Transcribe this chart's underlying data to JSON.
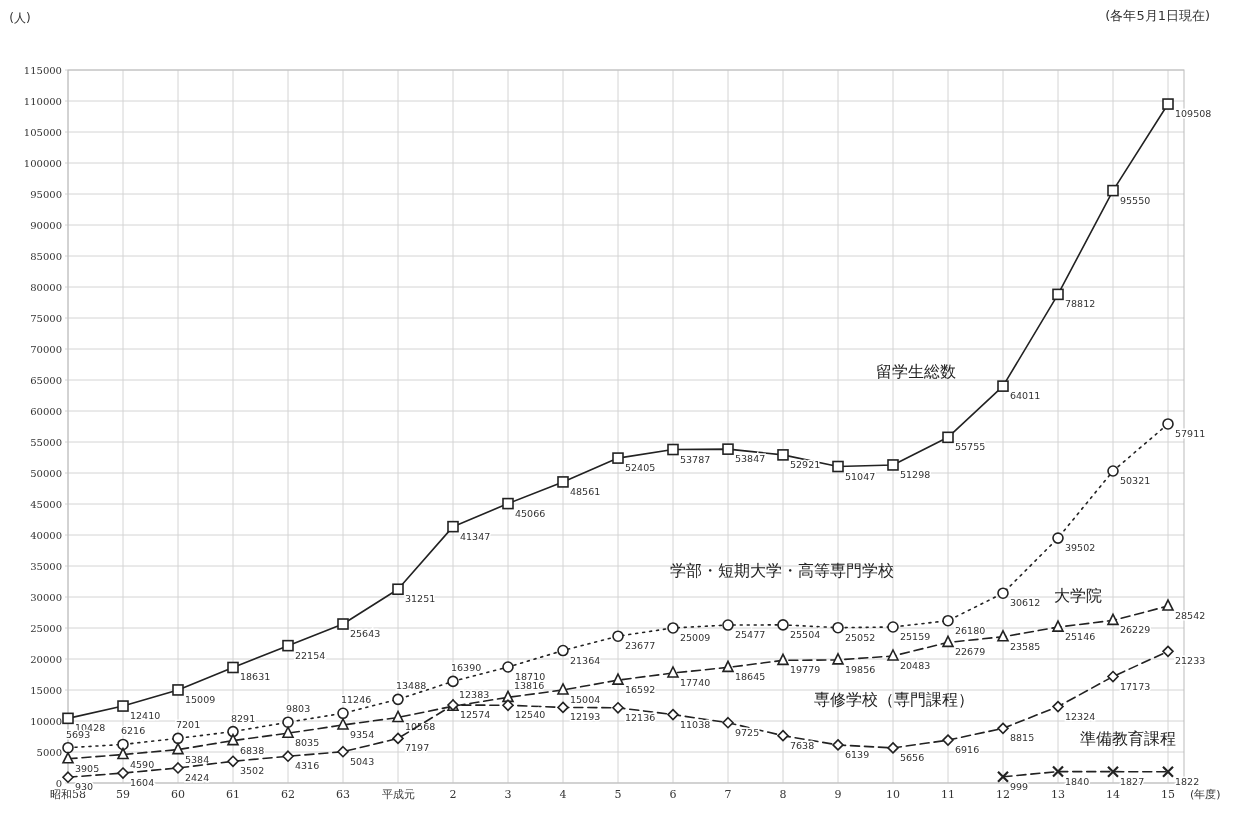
{
  "chart_data": {
    "type": "line",
    "ylabel": "(人)",
    "xlabel": "(年度)",
    "annotations": [
      "(各年5月1日現在)"
    ],
    "categories": [
      "昭和58",
      "59",
      "60",
      "61",
      "62",
      "63",
      "平成元",
      "2",
      "3",
      "4",
      "5",
      "6",
      "7",
      "8",
      "9",
      "10",
      "11",
      "12",
      "13",
      "14",
      "15"
    ],
    "ylim": [
      0,
      115000
    ],
    "yticks": [
      0,
      5000,
      10000,
      15000,
      20000,
      25000,
      30000,
      35000,
      40000,
      45000,
      50000,
      55000,
      60000,
      65000,
      70000,
      75000,
      80000,
      85000,
      90000,
      95000,
      100000,
      105000,
      110000,
      115000
    ],
    "grid": true,
    "data_labels": true,
    "series": [
      {
        "name": "留学生総数",
        "color": "#222222",
        "marker": "square",
        "line_style": "solid",
        "values": [
          10428,
          12410,
          15009,
          18631,
          22154,
          25643,
          31251,
          41347,
          45066,
          48561,
          52405,
          53787,
          53847,
          52921,
          51047,
          51298,
          55755,
          64011,
          78812,
          95550,
          109508
        ]
      },
      {
        "name": "学部・短期大学・高等専門学校",
        "color": "#222222",
        "marker": "circle",
        "line_style": "dotted",
        "values": [
          5693,
          6216,
          7201,
          8291,
          9803,
          11246,
          13488,
          16390,
          18710,
          21364,
          23677,
          25009,
          25477,
          25504,
          25052,
          25159,
          26180,
          30612,
          39502,
          50321,
          57911
        ]
      },
      {
        "name": "大学院",
        "color": "#222222",
        "marker": "triangle",
        "line_style": "dashed",
        "values": [
          3905,
          4590,
          5384,
          6838,
          8035,
          9354,
          10568,
          12383,
          13816,
          15004,
          16592,
          17740,
          18645,
          19779,
          19856,
          20483,
          22679,
          23585,
          25146,
          26229,
          28542
        ]
      },
      {
        "name": "専修学校（専門課程）",
        "color": "#222222",
        "marker": "diamond",
        "line_style": "dashed",
        "values": [
          930,
          1604,
          2424,
          3502,
          4316,
          5043,
          7197,
          12574,
          12540,
          12193,
          12136,
          11038,
          9725,
          7638,
          6139,
          5656,
          6916,
          8815,
          12324,
          17173,
          21233
        ]
      },
      {
        "name": "準備教育課程",
        "color": "#222222",
        "marker": "cross",
        "line_style": "dashed",
        "values": [
          null,
          null,
          null,
          null,
          null,
          null,
          null,
          null,
          null,
          null,
          null,
          null,
          null,
          null,
          null,
          null,
          null,
          999,
          1840,
          1827,
          1822
        ]
      }
    ]
  }
}
